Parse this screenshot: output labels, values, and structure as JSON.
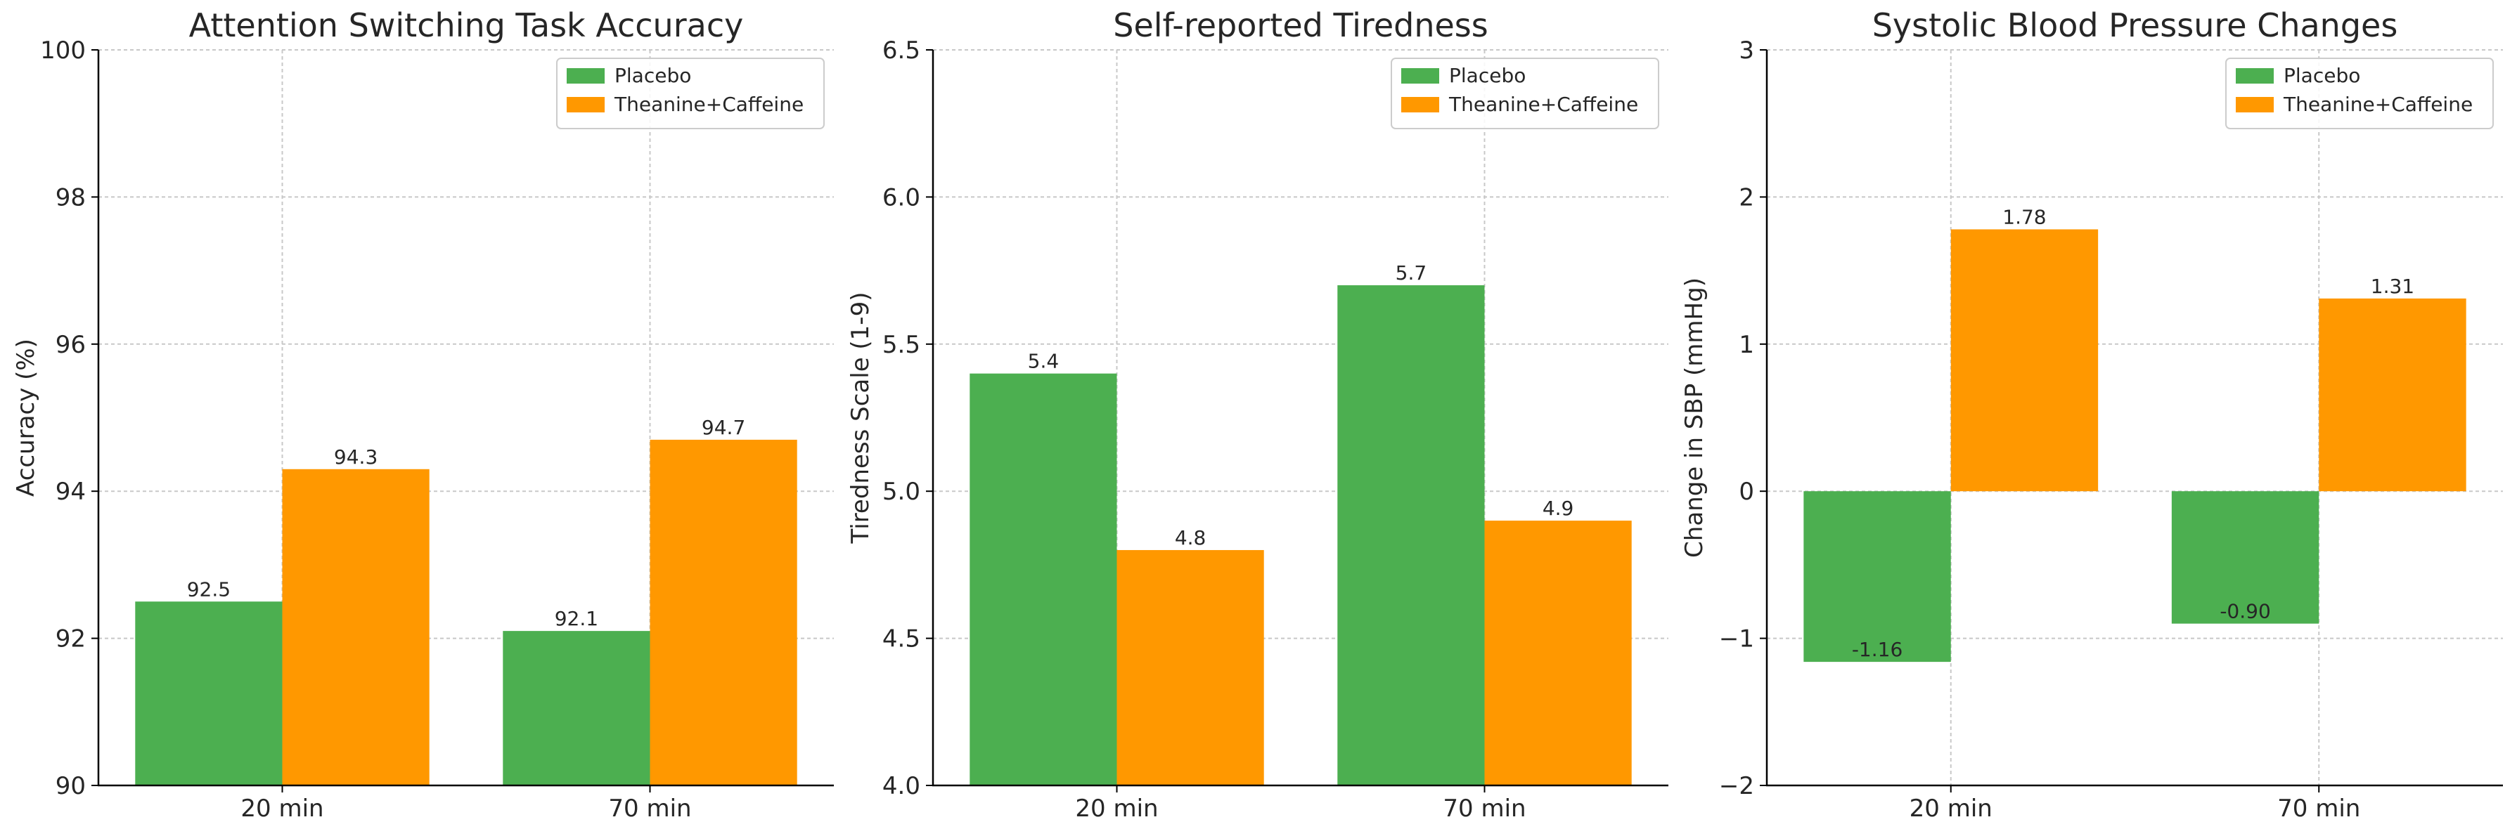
{
  "colors": {
    "placebo": "#4caf50",
    "treatment": "#ff9800",
    "grid": "#c8c8c8",
    "axis": "#000000",
    "text": "#262626",
    "legend_border": "#cccccc"
  },
  "chart_data": [
    {
      "type": "bar",
      "title": "Attention Switching Task Accuracy",
      "xlabel": "",
      "ylabel": "Accuracy (%)",
      "categories": [
        "20 min",
        "70 min"
      ],
      "series": [
        {
          "name": "Placebo",
          "values": [
            92.5,
            92.1
          ],
          "labels": [
            "92.5",
            "92.1"
          ]
        },
        {
          "name": "Theanine+Caffeine",
          "values": [
            94.3,
            94.7
          ],
          "labels": [
            "94.3",
            "94.7"
          ]
        }
      ],
      "ylim": [
        90,
        100
      ],
      "yticks": [
        90,
        92,
        94,
        96,
        98,
        100
      ],
      "ytick_labels": [
        "90",
        "92",
        "94",
        "96",
        "98",
        "100"
      ],
      "grid": true,
      "legend": "top-right"
    },
    {
      "type": "bar",
      "title": "Self-reported Tiredness",
      "xlabel": "",
      "ylabel": "Tiredness Scale (1-9)",
      "categories": [
        "20 min",
        "70 min"
      ],
      "series": [
        {
          "name": "Placebo",
          "values": [
            5.4,
            5.7
          ],
          "labels": [
            "5.4",
            "5.7"
          ]
        },
        {
          "name": "Theanine+Caffeine",
          "values": [
            4.8,
            4.9
          ],
          "labels": [
            "4.8",
            "4.9"
          ]
        }
      ],
      "ylim": [
        4.0,
        6.5
      ],
      "yticks": [
        4.0,
        4.5,
        5.0,
        5.5,
        6.0,
        6.5
      ],
      "ytick_labels": [
        "4.0",
        "4.5",
        "5.0",
        "5.5",
        "6.0",
        "6.5"
      ],
      "grid": true,
      "legend": "top-right"
    },
    {
      "type": "bar",
      "title": "Systolic Blood Pressure Changes",
      "xlabel": "",
      "ylabel": "Change in SBP (mmHg)",
      "categories": [
        "20 min",
        "70 min"
      ],
      "series": [
        {
          "name": "Placebo",
          "values": [
            -1.16,
            -0.9
          ],
          "labels": [
            "-1.16",
            "-0.90"
          ]
        },
        {
          "name": "Theanine+Caffeine",
          "values": [
            1.78,
            1.31
          ],
          "labels": [
            "1.78",
            "1.31"
          ]
        }
      ],
      "ylim": [
        -2,
        3
      ],
      "yticks": [
        -2,
        -1,
        0,
        1,
        2,
        3
      ],
      "ytick_labels": [
        "−2",
        "−1",
        "0",
        "1",
        "2",
        "3"
      ],
      "grid": true,
      "legend": "top-right"
    }
  ]
}
